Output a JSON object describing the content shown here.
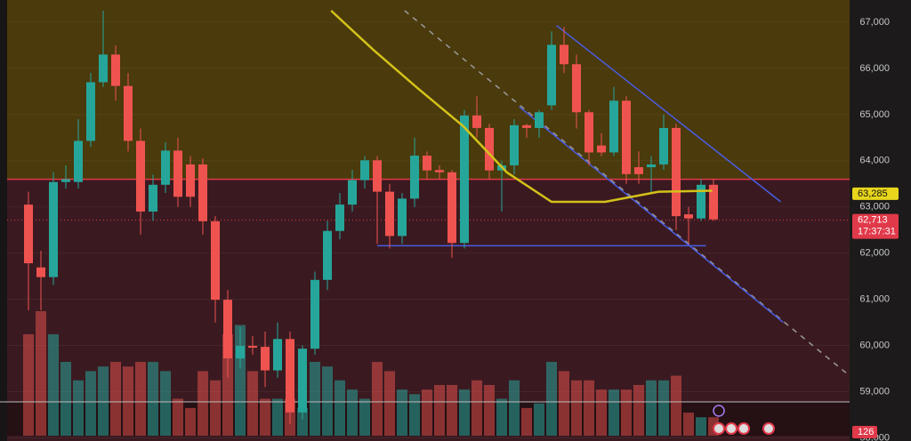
{
  "chart_data": {
    "type": "candlestick",
    "ylim": [
      57700,
      67250
    ],
    "yticks": [
      {
        "value": 58000,
        "label": "58,000"
      },
      {
        "value": 59000,
        "label": "59,000"
      },
      {
        "value": 60000,
        "label": "60,000"
      },
      {
        "value": 61000,
        "label": "61,000"
      },
      {
        "value": 62000,
        "label": "62,000"
      },
      {
        "value": 63000,
        "label": "63,000"
      },
      {
        "value": 64000,
        "label": "64,000"
      },
      {
        "value": 65000,
        "label": "65,000"
      },
      {
        "value": 66000,
        "label": "66,000"
      },
      {
        "value": 67000,
        "label": "67,000"
      }
    ],
    "up_color": "#26a69a",
    "down_color": "#ef5350",
    "open": [
      63050,
      61690,
      61480,
      63540,
      63540,
      64430,
      65700,
      66300,
      65620,
      64430,
      62900,
      63480,
      64220,
      63920,
      63920,
      62690,
      60990,
      59720,
      59990,
      59970,
      59460,
      60140,
      58550,
      59930,
      61420,
      62480,
      63050,
      63580,
      64010,
      63330,
      62370,
      63180,
      64110,
      63800,
      63750,
      62220,
      64980,
      64710,
      63790,
      63900,
      64770,
      64710,
      65200,
      66510,
      66090,
      65050,
      64330,
      64180,
      65300,
      63860,
      63860,
      63920,
      64710,
      62840,
      62750,
      63480
    ],
    "high": [
      63330,
      62050,
      63750,
      63900,
      64900,
      65900,
      67250,
      66500,
      65900,
      64700,
      63700,
      64400,
      64500,
      64100,
      64050,
      62800,
      61200,
      60400,
      60200,
      60300,
      60500,
      60300,
      60000,
      61600,
      62700,
      63300,
      63800,
      64100,
      64100,
      63500,
      63300,
      64500,
      64200,
      63900,
      63800,
      65100,
      65400,
      64800,
      64000,
      64900,
      64800,
      65100,
      66800,
      66900,
      66300,
      65100,
      64600,
      65600,
      65400,
      64200,
      64100,
      65000,
      64800,
      63000,
      63600,
      63600
    ],
    "low": [
      60760,
      60760,
      61310,
      63400,
      63400,
      64300,
      65600,
      65300,
      64200,
      62400,
      62700,
      63300,
      63000,
      63000,
      62400,
      60500,
      59300,
      59500,
      59800,
      59100,
      59300,
      58300,
      58400,
      59800,
      61200,
      62300,
      62900,
      63400,
      62200,
      62100,
      62200,
      63000,
      63600,
      63600,
      61900,
      62100,
      64500,
      63600,
      62900,
      63700,
      64500,
      64500,
      65100,
      65900,
      64700,
      63900,
      64100,
      64100,
      63500,
      63500,
      63300,
      63800,
      62500,
      62200,
      62700,
      62700
    ],
    "close": [
      61780,
      61480,
      63540,
      63600,
      64430,
      65700,
      66300,
      65620,
      64430,
      62900,
      63480,
      64220,
      63220,
      63220,
      62690,
      60990,
      59720,
      59990,
      59970,
      59460,
      60140,
      58550,
      59930,
      61420,
      62480,
      63050,
      63580,
      64010,
      63330,
      62370,
      63180,
      64110,
      63790,
      63750,
      62220,
      64980,
      64710,
      63790,
      63900,
      64770,
      64710,
      65050,
      66510,
      66090,
      65050,
      64180,
      64180,
      65300,
      63710,
      63710,
      63920,
      64710,
      62800,
      62750,
      63480,
      62730
    ],
    "volume": [
      110,
      135,
      110,
      80,
      60,
      70,
      75,
      80,
      75,
      80,
      80,
      70,
      40,
      30,
      70,
      60,
      110,
      120,
      70,
      40,
      40,
      40,
      30,
      80,
      75,
      60,
      50,
      40,
      80,
      70,
      50,
      45,
      50,
      55,
      55,
      50,
      60,
      55,
      40,
      60,
      30,
      35,
      80,
      70,
      60,
      60,
      50,
      50,
      50,
      55,
      60,
      60,
      65,
      25,
      20,
      20
    ],
    "moving_average": {
      "color": "#d4c21a",
      "points": [
        [
          24.3,
          67250
        ],
        [
          27.7,
          66400
        ],
        [
          31.3,
          65560
        ],
        [
          34.9,
          64750
        ],
        [
          38.4,
          63750
        ],
        [
          42,
          63110
        ],
        [
          46.3,
          63110
        ],
        [
          50.6,
          63330
        ],
        [
          54.9,
          63350
        ]
      ]
    },
    "level": {
      "value": 63600,
      "color": "#e0394a"
    },
    "support": {
      "color": "#4a5ce0",
      "points": [
        [
          28,
          62160
        ],
        [
          54.4,
          62160
        ]
      ]
    },
    "channel_upper": {
      "color": "#4a5ce0",
      "points": [
        [
          42.4,
          66930
        ],
        [
          60.4,
          63110
        ]
      ]
    },
    "channel_lower": {
      "color": "#4a5ce0",
      "points": [
        [
          39.4,
          65170
        ],
        [
          60.6,
          60500
        ]
      ]
    },
    "dashed_trend": {
      "color": "#9a9a9a",
      "points": [
        [
          30.2,
          67250
        ],
        [
          65.9,
          59350
        ]
      ]
    },
    "ma_badge": {
      "value": 63285,
      "label": "63,285"
    },
    "price_badge": {
      "value": 62713,
      "label": "62,713"
    },
    "countdown": "17:37:31",
    "volume_badge": "126"
  }
}
